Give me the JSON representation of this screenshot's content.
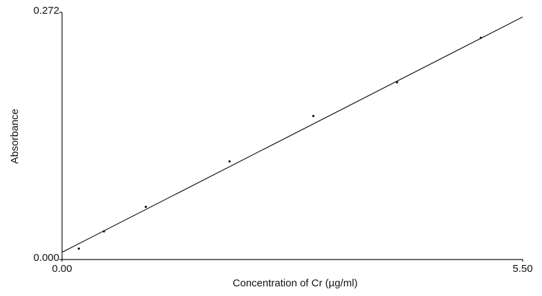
{
  "chart_data": {
    "type": "scatter",
    "xlabel": "Concentration of Cr (µg/ml)",
    "ylabel": "Absorbance",
    "xlim": [
      0,
      5.5
    ],
    "ylim": [
      0,
      0.272
    ],
    "xticks": [
      {
        "value": 0,
        "label": "0.00"
      },
      {
        "value": 5.5,
        "label": "5.50"
      }
    ],
    "yticks": [
      {
        "value": 0,
        "label": "0.000"
      },
      {
        "value": 0.272,
        "label": "0.272"
      }
    ],
    "series": [
      {
        "color": "#111111",
        "x": [
          0.2,
          0.5,
          1.0,
          2.0,
          3.0,
          4.0,
          5.0
        ],
        "values": [
          0.012,
          0.031,
          0.058,
          0.108,
          0.158,
          0.195,
          0.244
        ]
      }
    ],
    "fit": {
      "color": "#111111",
      "x": [
        0,
        5.5
      ],
      "values": [
        0.008,
        0.267
      ]
    }
  }
}
